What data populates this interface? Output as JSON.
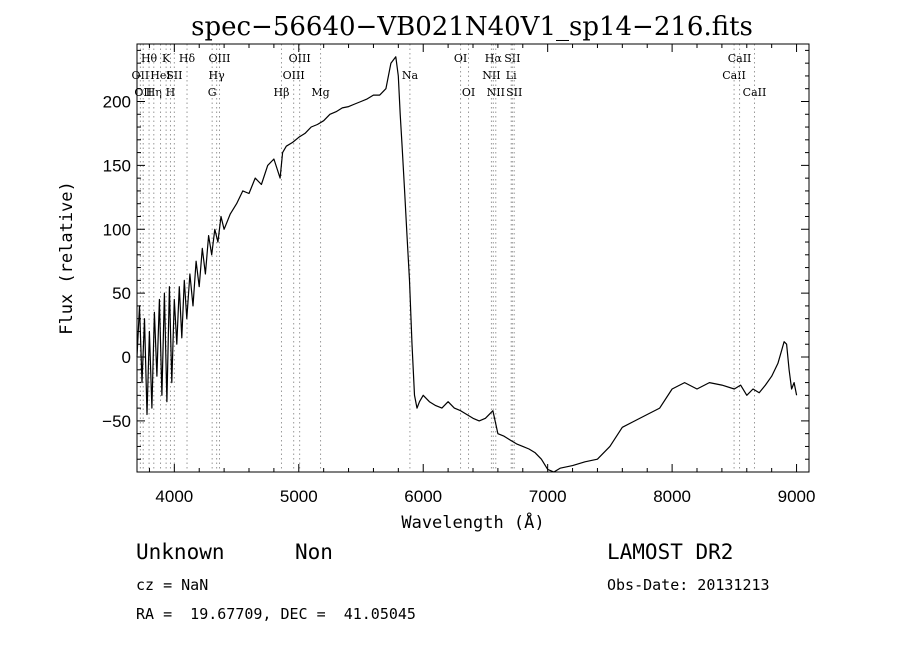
{
  "chart_data": {
    "type": "line",
    "title": "spec−56640−VB021N40V1_sp14−216.fits",
    "xlabel": "Wavelength (Å)",
    "ylabel": "Flux (relative)",
    "xlim": [
      3700,
      9100
    ],
    "ylim": [
      -90,
      245
    ],
    "xticks": [
      4000,
      5000,
      6000,
      7000,
      8000,
      9000
    ],
    "yticks": [
      -50,
      0,
      50,
      100,
      150,
      200
    ],
    "series": [
      {
        "name": "flux",
        "x": [
          3700,
          3720,
          3740,
          3760,
          3780,
          3800,
          3820,
          3840,
          3860,
          3880,
          3900,
          3920,
          3940,
          3960,
          3980,
          4000,
          4020,
          4040,
          4060,
          4080,
          4100,
          4125,
          4150,
          4175,
          4200,
          4225,
          4250,
          4275,
          4300,
          4325,
          4350,
          4375,
          4400,
          4450,
          4500,
          4550,
          4600,
          4650,
          4700,
          4750,
          4800,
          4850,
          4870,
          4900,
          4950,
          5000,
          5050,
          5100,
          5150,
          5200,
          5250,
          5300,
          5350,
          5400,
          5450,
          5500,
          5550,
          5600,
          5650,
          5700,
          5740,
          5780,
          5800,
          5815,
          5830,
          5850,
          5870,
          5890,
          5910,
          5930,
          5950,
          5970,
          6000,
          6050,
          6100,
          6150,
          6200,
          6250,
          6300,
          6350,
          6400,
          6450,
          6500,
          6560,
          6600,
          6650,
          6700,
          6750,
          6800,
          6850,
          6900,
          6950,
          7000,
          7050,
          7100,
          7200,
          7300,
          7400,
          7500,
          7600,
          7700,
          7800,
          7900,
          8000,
          8100,
          8200,
          8300,
          8400,
          8500,
          8550,
          8600,
          8650,
          8700,
          8750,
          8800,
          8850,
          8880,
          8900,
          8920,
          8940,
          8960,
          8980,
          9000
        ],
        "y": [
          0,
          40,
          -20,
          30,
          -45,
          20,
          -40,
          35,
          -15,
          45,
          -30,
          50,
          -35,
          55,
          -20,
          45,
          10,
          55,
          15,
          60,
          30,
          65,
          40,
          75,
          55,
          85,
          65,
          95,
          80,
          100,
          90,
          110,
          100,
          112,
          120,
          130,
          128,
          140,
          135,
          150,
          155,
          140,
          160,
          165,
          168,
          172,
          175,
          180,
          182,
          185,
          190,
          192,
          195,
          196,
          198,
          200,
          202,
          205,
          205,
          210,
          230,
          235,
          220,
          190,
          165,
          130,
          95,
          60,
          10,
          -30,
          -40,
          -35,
          -30,
          -35,
          -38,
          -40,
          -35,
          -40,
          -42,
          -45,
          -48,
          -50,
          -48,
          -42,
          -60,
          -62,
          -65,
          -68,
          -70,
          -72,
          -75,
          -80,
          -88,
          -90,
          -87,
          -85,
          -82,
          -80,
          -70,
          -55,
          -50,
          -45,
          -40,
          -25,
          -20,
          -25,
          -20,
          -22,
          -25,
          -22,
          -30,
          -25,
          -28,
          -22,
          -15,
          -5,
          5,
          12,
          10,
          -10,
          -25,
          -20,
          -30
        ]
      }
    ],
    "spectral_lines": [
      {
        "wl": 3727,
        "label": "OII",
        "row": 2
      },
      {
        "wl": 3750,
        "label": "OII",
        "row": 3
      },
      {
        "wl": 3797,
        "label": "Hθ",
        "row": 1
      },
      {
        "wl": 3835,
        "label": "Hη",
        "row": 3
      },
      {
        "wl": 3889,
        "label": "HeI",
        "row": 2
      },
      {
        "wl": 3934,
        "label": "K",
        "row": 1
      },
      {
        "wl": 3969,
        "label": "H",
        "row": 3
      },
      {
        "wl": 4000,
        "label": "SII",
        "row": 2
      },
      {
        "wl": 4102,
        "label": "Hδ",
        "row": 1
      },
      {
        "wl": 4304,
        "label": "G",
        "row": 3
      },
      {
        "wl": 4340,
        "label": "Hγ",
        "row": 2
      },
      {
        "wl": 4363,
        "label": "OIII",
        "row": 1
      },
      {
        "wl": 4861,
        "label": "Hβ",
        "row": 3
      },
      {
        "wl": 4959,
        "label": "OIII",
        "row": 2
      },
      {
        "wl": 5007,
        "label": "OIII",
        "row": 1
      },
      {
        "wl": 5175,
        "label": "Mg",
        "row": 3
      },
      {
        "wl": 5893,
        "label": "Na",
        "row": 2
      },
      {
        "wl": 6300,
        "label": "OI",
        "row": 1
      },
      {
        "wl": 6364,
        "label": "OI",
        "row": 3
      },
      {
        "wl": 6548,
        "label": "NII",
        "row": 2
      },
      {
        "wl": 6563,
        "label": "Hα",
        "row": 1
      },
      {
        "wl": 6583,
        "label": "NII",
        "row": 3
      },
      {
        "wl": 6707,
        "label": "Li",
        "row": 2
      },
      {
        "wl": 6716,
        "label": "SII",
        "row": 1
      },
      {
        "wl": 6731,
        "label": "SII",
        "row": 3
      },
      {
        "wl": 8498,
        "label": "CaII",
        "row": 2
      },
      {
        "wl": 8542,
        "label": "CaII",
        "row": 1
      },
      {
        "wl": 8662,
        "label": "CaII",
        "row": 3
      }
    ]
  },
  "info": {
    "class": "Unknown",
    "subclass": "Non",
    "cz": "cz = NaN",
    "radec": "RA =  19.67709, DEC =  41.05045",
    "survey": "LAMOST DR2",
    "obs_date": "Obs-Date: 20131213"
  }
}
